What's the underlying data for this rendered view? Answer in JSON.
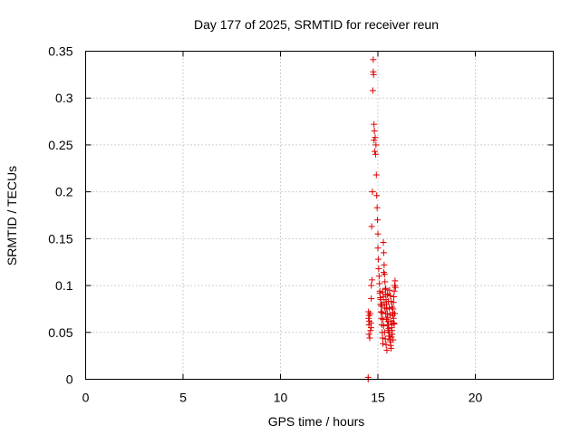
{
  "chart_data": {
    "type": "scatter",
    "title": "Day 177 of 2025, SRMTID for receiver reun",
    "xlabel": "GPS time / hours",
    "ylabel": "SRMTID / TECUs",
    "xlim": [
      0,
      24
    ],
    "ylim": [
      0,
      0.35
    ],
    "xticks": [
      0,
      5,
      10,
      15,
      20
    ],
    "yticks": [
      0,
      0.05,
      0.1,
      0.15,
      0.2,
      0.25,
      0.3,
      0.35
    ],
    "ytick_labels": [
      "0",
      "0.05",
      "0.1",
      "0.15",
      "0.2",
      "0.25",
      "0.3",
      "0.35"
    ],
    "grid": true,
    "marker": "+",
    "color": "#dd0000",
    "series": [
      {
        "x": [
          14.5,
          14.5,
          14.52,
          14.52,
          14.54,
          14.54,
          14.55,
          14.56,
          14.58,
          14.6,
          14.62,
          14.64,
          14.65,
          14.66,
          14.66,
          14.68,
          14.7,
          14.72,
          14.74,
          14.76,
          14.76,
          14.78,
          14.8,
          14.8,
          14.82,
          14.84,
          14.86,
          14.88,
          14.9,
          14.92,
          14.94,
          14.96,
          14.98,
          15.0,
          15.0,
          15.02,
          15.04,
          15.06,
          15.08,
          15.1,
          15.12,
          15.14,
          15.16,
          15.18,
          15.2,
          15.22,
          15.24,
          15.26,
          15.28,
          15.3,
          15.32,
          15.34,
          15.36,
          15.38,
          15.4,
          15.42,
          15.44,
          15.46,
          15.48,
          15.5,
          15.52,
          15.54,
          15.56,
          15.58,
          15.6,
          15.62,
          15.64,
          15.66,
          15.68,
          15.7,
          15.72,
          15.74,
          15.76,
          15.78,
          15.8,
          15.82,
          15.84,
          15.86,
          15.88,
          15.9,
          15.1,
          15.14,
          15.18,
          15.22,
          15.26,
          15.3,
          15.34,
          15.38,
          15.42,
          15.46,
          15.5,
          15.54,
          15.58,
          15.62,
          15.66,
          15.7,
          15.74,
          15.78,
          15.82,
          15.86,
          15.2,
          15.24,
          15.28,
          15.32,
          15.36,
          15.4,
          15.44,
          15.48,
          15.52,
          15.56,
          15.6,
          15.64,
          15.68,
          15.72,
          15.76,
          15.8,
          15.84,
          15.3,
          15.4,
          15.5
        ],
        "y": [
          0.0,
          0.002,
          0.065,
          0.072,
          0.058,
          0.048,
          0.068,
          0.062,
          0.044,
          0.07,
          0.052,
          0.06,
          0.055,
          0.086,
          0.1,
          0.163,
          0.106,
          0.2,
          0.308,
          0.328,
          0.341,
          0.325,
          0.272,
          0.255,
          0.265,
          0.243,
          0.258,
          0.24,
          0.25,
          0.218,
          0.196,
          0.183,
          0.17,
          0.155,
          0.14,
          0.128,
          0.118,
          0.11,
          0.102,
          0.094,
          0.087,
          0.08,
          0.072,
          0.065,
          0.058,
          0.05,
          0.044,
          0.038,
          0.146,
          0.135,
          0.122,
          0.112,
          0.104,
          0.096,
          0.09,
          0.085,
          0.08,
          0.075,
          0.07,
          0.066,
          0.062,
          0.058,
          0.054,
          0.05,
          0.046,
          0.042,
          0.04,
          0.036,
          0.033,
          0.045,
          0.052,
          0.06,
          0.068,
          0.075,
          0.082,
          0.088,
          0.094,
          0.1,
          0.105,
          0.098,
          0.092,
          0.085,
          0.078,
          0.071,
          0.064,
          0.057,
          0.05,
          0.043,
          0.037,
          0.031,
          0.09,
          0.083,
          0.076,
          0.069,
          0.062,
          0.055,
          0.048,
          0.042,
          0.06,
          0.07,
          0.08,
          0.093,
          0.088,
          0.082,
          0.076,
          0.07,
          0.064,
          0.058,
          0.052,
          0.046,
          0.095,
          0.089,
          0.083,
          0.077,
          0.071,
          0.065,
          0.059,
          0.114,
          0.097,
          0.091
        ]
      }
    ]
  }
}
